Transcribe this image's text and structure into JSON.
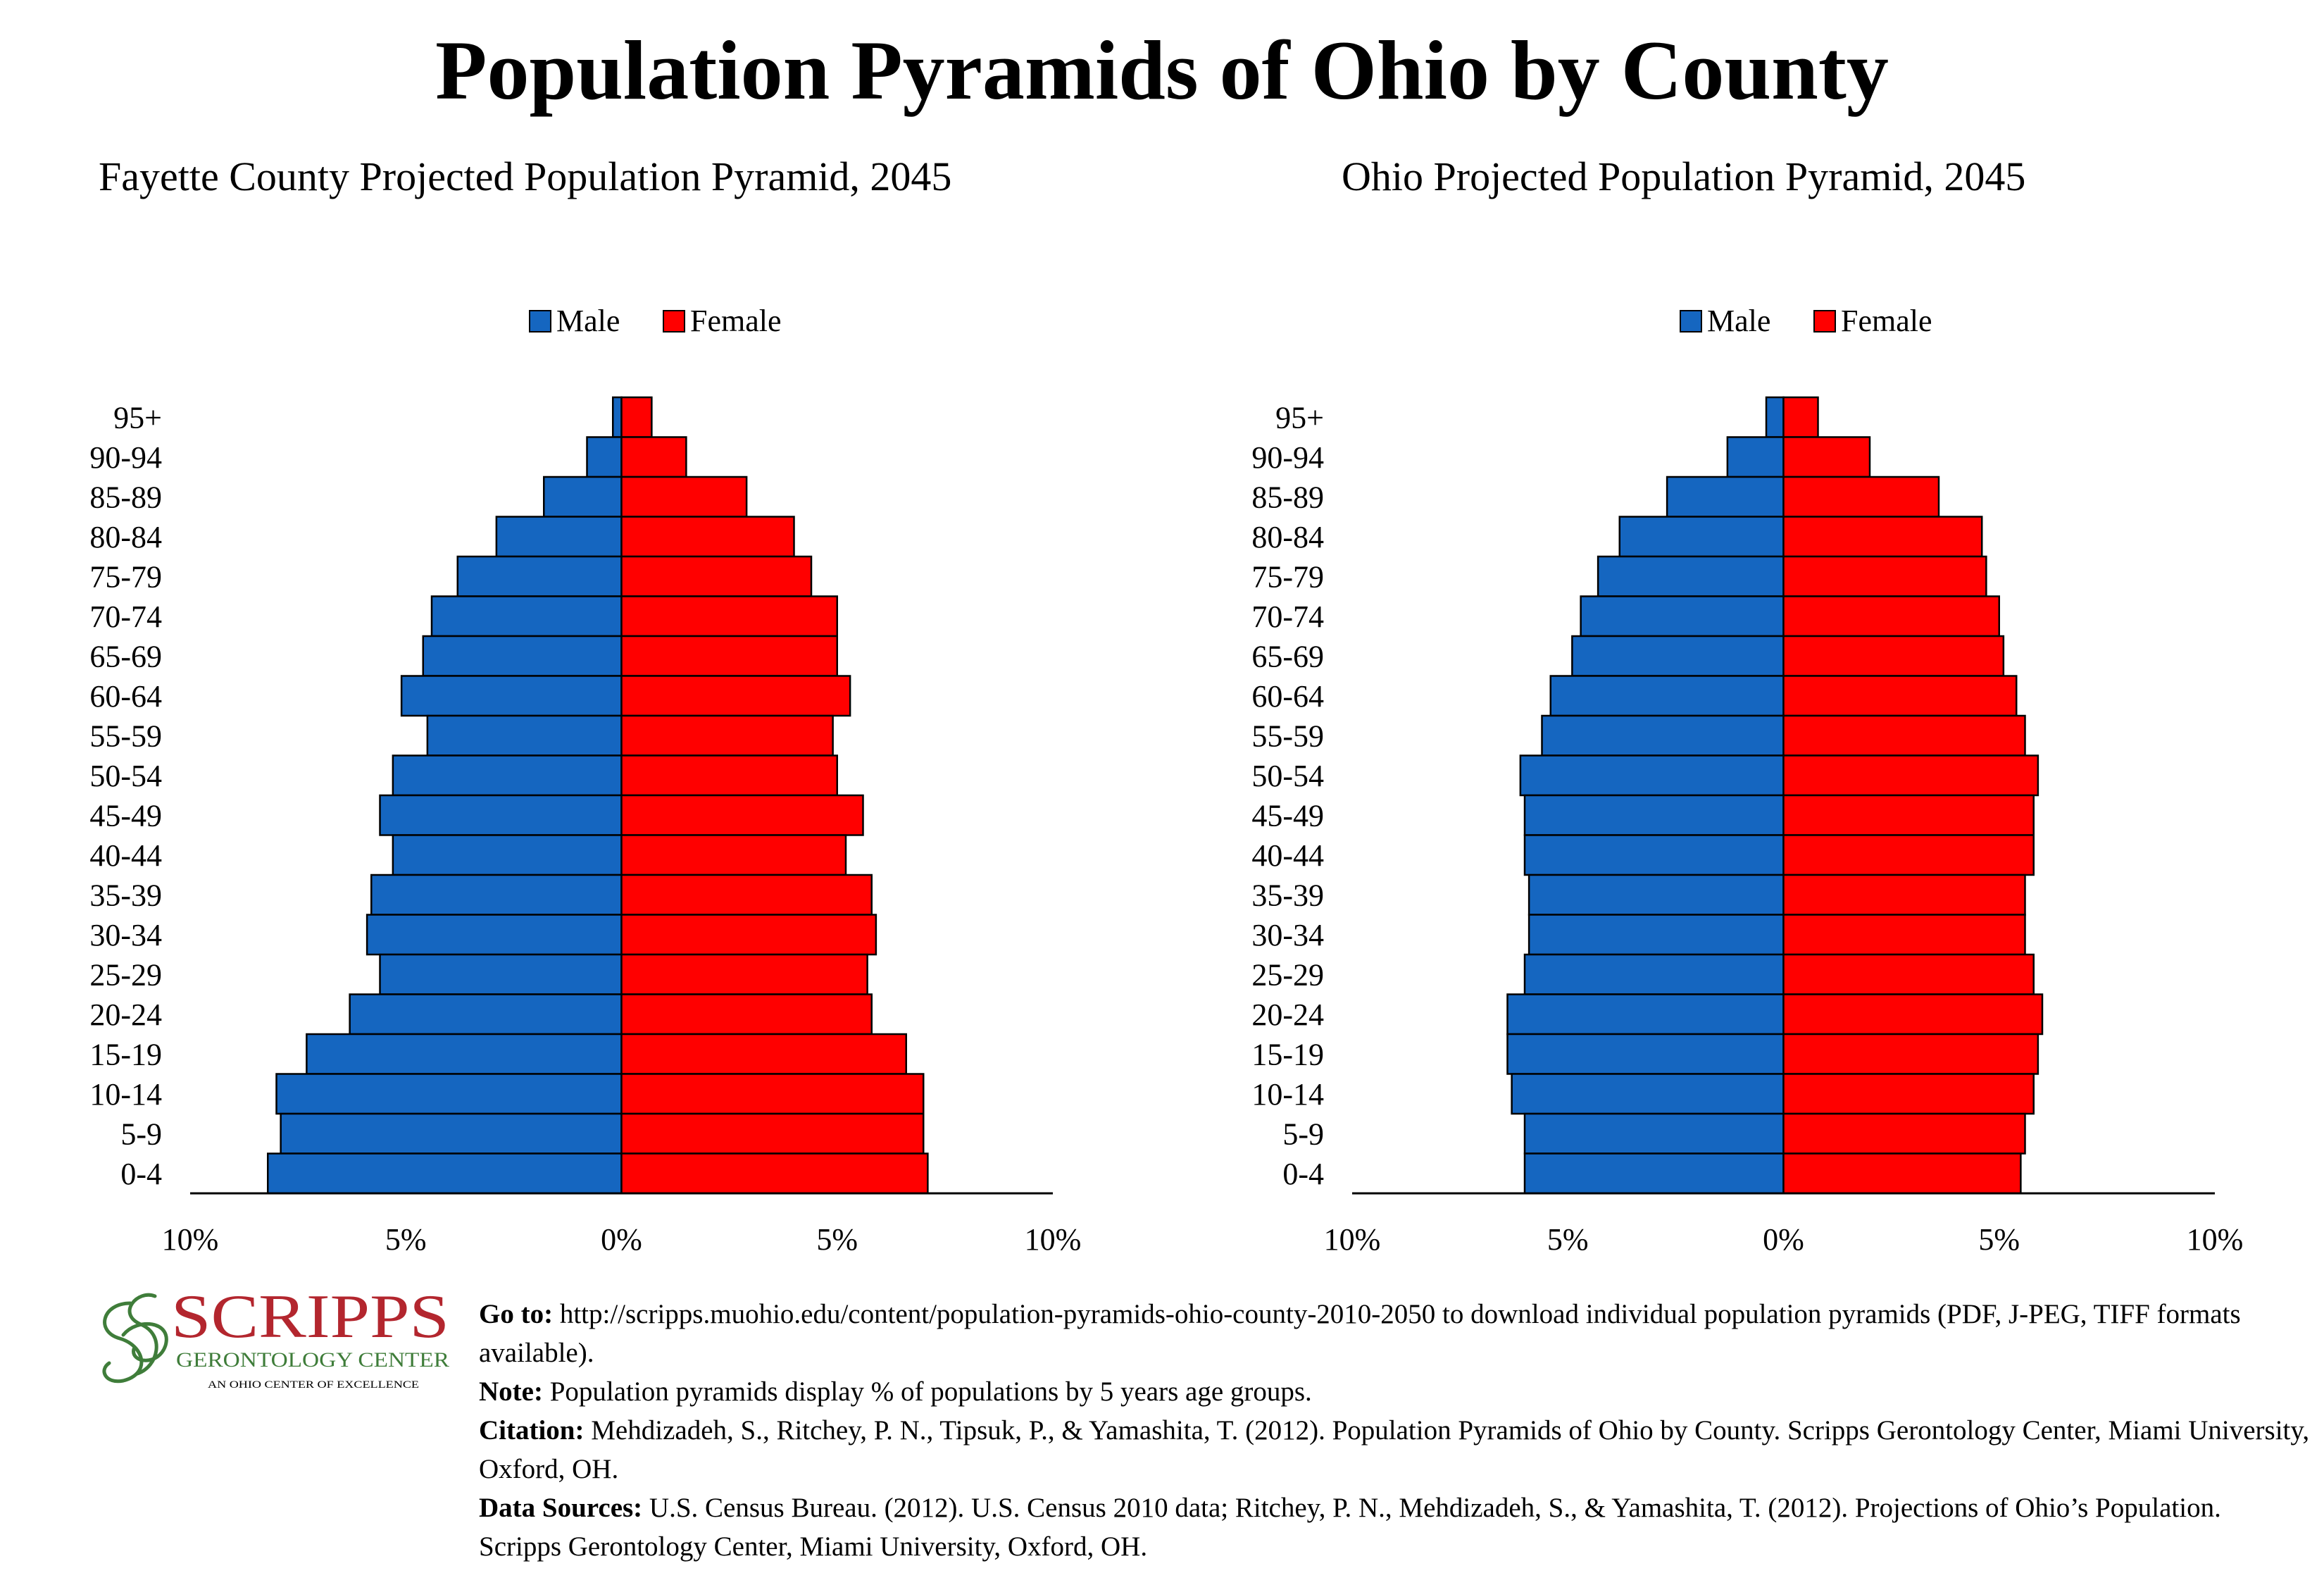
{
  "title": "Population Pyramids of Ohio by County",
  "colors": {
    "male": "#1566C0",
    "female": "#FF0000"
  },
  "chart_data": [
    {
      "type": "bar",
      "orientation": "horizontal-pyramid",
      "title": "Fayette County Projected Population Pyramid, 2045",
      "categories": [
        "95+",
        "90-94",
        "85-89",
        "80-84",
        "75-79",
        "70-74",
        "65-69",
        "60-64",
        "55-59",
        "50-54",
        "45-49",
        "40-44",
        "35-39",
        "30-34",
        "25-29",
        "20-24",
        "15-19",
        "10-14",
        "5-9",
        "0-4"
      ],
      "series": [
        {
          "name": "Male",
          "values": [
            0.2,
            0.8,
            1.8,
            2.9,
            3.8,
            4.4,
            4.6,
            5.1,
            4.5,
            5.3,
            5.6,
            5.3,
            5.8,
            5.9,
            5.6,
            6.3,
            7.3,
            8.0,
            7.9,
            8.2
          ]
        },
        {
          "name": "Female",
          "values": [
            0.7,
            1.5,
            2.9,
            4.0,
            4.4,
            5.0,
            5.0,
            5.3,
            4.9,
            5.0,
            5.6,
            5.2,
            5.8,
            5.9,
            5.7,
            5.8,
            6.6,
            7.0,
            7.0,
            7.1
          ]
        }
      ],
      "xlim": [
        -10,
        10
      ],
      "xticks": [
        "10%",
        "5%",
        "0%",
        "5%",
        "10%"
      ],
      "legend": "top-center"
    },
    {
      "type": "bar",
      "orientation": "horizontal-pyramid",
      "title": "Ohio Projected Population Pyramid, 2045",
      "categories": [
        "95+",
        "90-94",
        "85-89",
        "80-84",
        "75-79",
        "70-74",
        "65-69",
        "60-64",
        "55-59",
        "50-54",
        "45-49",
        "40-44",
        "35-39",
        "30-34",
        "25-29",
        "20-24",
        "15-19",
        "10-14",
        "5-9",
        "0-4"
      ],
      "series": [
        {
          "name": "Male",
          "values": [
            0.4,
            1.3,
            2.7,
            3.8,
            4.3,
            4.7,
            4.9,
            5.4,
            5.6,
            6.1,
            6.0,
            6.0,
            5.9,
            5.9,
            6.0,
            6.4,
            6.4,
            6.3,
            6.0,
            6.0
          ]
        },
        {
          "name": "Female",
          "values": [
            0.8,
            2.0,
            3.6,
            4.6,
            4.7,
            5.0,
            5.1,
            5.4,
            5.6,
            5.9,
            5.8,
            5.8,
            5.6,
            5.6,
            5.8,
            6.0,
            5.9,
            5.8,
            5.6,
            5.5
          ]
        }
      ],
      "xlim": [
        -10,
        10
      ],
      "xticks": [
        "10%",
        "5%",
        "0%",
        "5%",
        "10%"
      ],
      "legend": "top-center"
    }
  ],
  "logo": {
    "name": "SCRIPPS",
    "subtitle": "GERONTOLOGY CENTER",
    "tagline": "AN OHIO CENTER OF EXCELLENCE"
  },
  "notes": {
    "goto_label": "Go to:",
    "goto_text": " http://scripps.muohio.edu/content/population-pyramids-ohio-county-2010-2050 to download individual population pyramids (PDF, J-PEG, TIFF formats available).",
    "note_label": "Note:",
    "note_text": " Population pyramids display % of populations by 5 years age groups.",
    "citation_label": "Citation:",
    "citation_text": " Mehdizadeh, S., Ritchey, P. N., Tipsuk, P., & Yamashita, T. (2012). Population Pyramids of Ohio by County. Scripps Gerontology Center, Miami University, Oxford, OH.",
    "sources_label": "Data Sources:",
    "sources_text": " U.S. Census Bureau. (2012). U.S. Census 2010 data; Ritchey, P. N., Mehdizadeh, S., & Yamashita, T. (2012). Projections of Ohio’s Population. Scripps Gerontology Center, Miami University, Oxford, OH."
  }
}
